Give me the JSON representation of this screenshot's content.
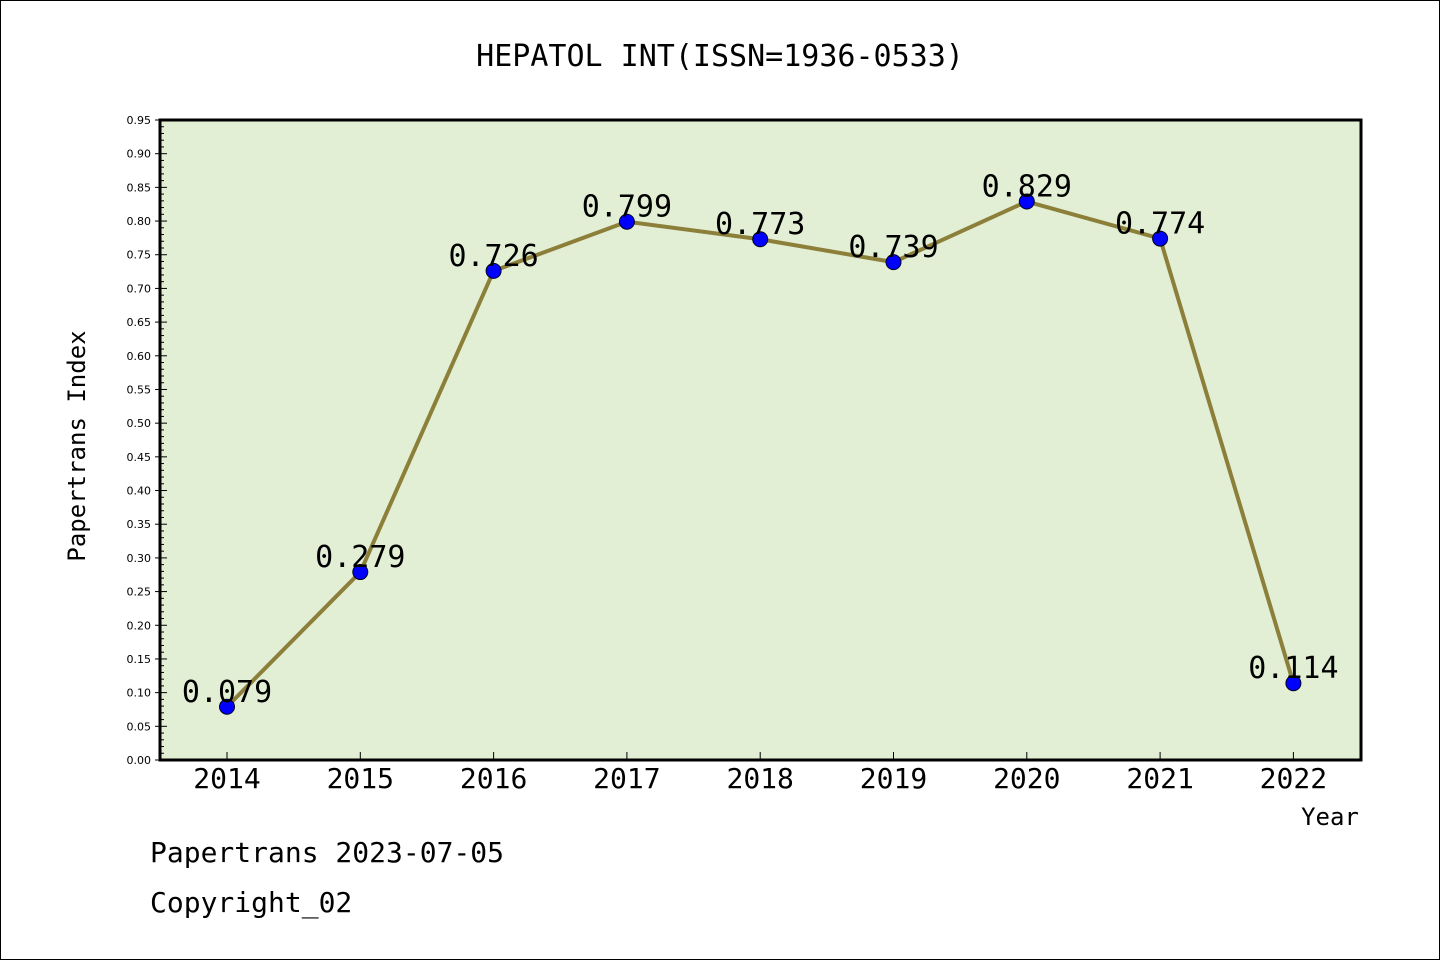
{
  "chart_data": {
    "type": "line",
    "title": "HEPATOL INT(ISSN=1936-0533)",
    "xlabel": "Year",
    "ylabel": "Papertrans Index",
    "categories": [
      "2014",
      "2015",
      "2016",
      "2017",
      "2018",
      "2019",
      "2020",
      "2021",
      "2022"
    ],
    "values": [
      0.079,
      0.279,
      0.726,
      0.799,
      0.773,
      0.739,
      0.829,
      0.774,
      0.114
    ],
    "data_labels": [
      "0.079",
      "0.279",
      "0.726",
      "0.799",
      "0.773",
      "0.739",
      "0.829",
      "0.774",
      "0.114"
    ],
    "ylim": [
      0,
      0.95
    ],
    "y_ticks": [
      "0.00",
      "0.05",
      "0.10",
      "0.15",
      "0.20",
      "0.25",
      "0.30",
      "0.35",
      "0.40",
      "0.45",
      "0.50",
      "0.55",
      "0.60",
      "0.65",
      "0.70",
      "0.75",
      "0.80",
      "0.85",
      "0.90",
      "0.95"
    ],
    "grid": false,
    "colors": {
      "plot_background": "#e2efd5",
      "line": "#8c7f3a",
      "marker": "#0000ff"
    }
  },
  "footer": {
    "line1": "Papertrans 2023-07-05",
    "line2": "Copyright_02"
  }
}
